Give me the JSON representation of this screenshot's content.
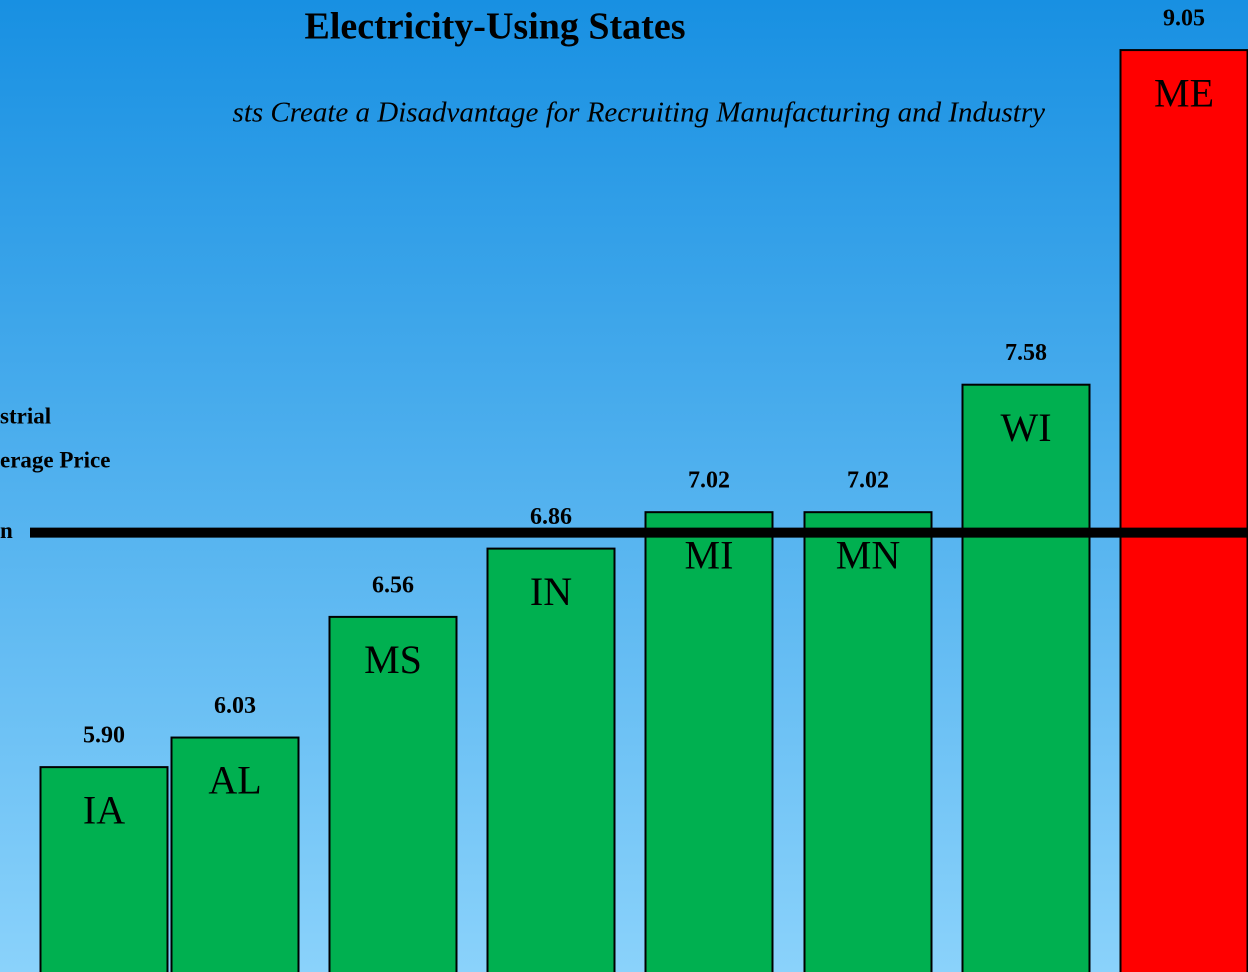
{
  "chart_data": {
    "type": "bar",
    "title": "Electricity-Using States",
    "subtitle": "sts Create a Disadvantage for Recruiting Manufacturing and Industry",
    "annotations": [
      "strial",
      "erage Price"
    ],
    "categories": [
      "IA",
      "AL",
      "MS",
      "IN",
      "MI",
      "MN",
      "WI",
      "ME"
    ],
    "values": [
      5.9,
      6.03,
      6.56,
      6.86,
      7.02,
      7.02,
      7.58,
      9.05
    ],
    "value_labels": [
      "5.90",
      "6.03",
      "6.56",
      "6.86",
      "7.02",
      "7.02",
      "7.58",
      "9.05"
    ],
    "colors": [
      "#00b050",
      "#00b050",
      "#00b050",
      "#00b050",
      "#00b050",
      "#00b050",
      "#00b050",
      "#ff0000"
    ],
    "ylim": [
      5.0,
      9.27
    ],
    "reference_line": {
      "value": 6.93,
      "label": "n",
      "color": "#000000"
    }
  }
}
